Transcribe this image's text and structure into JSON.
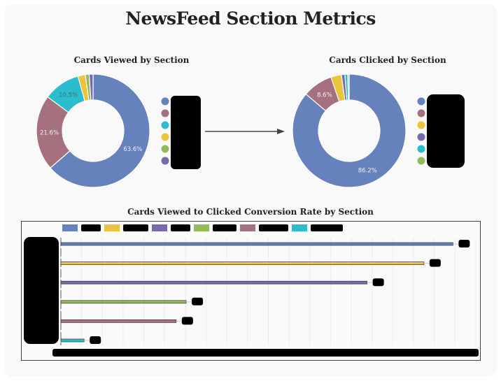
{
  "page": {
    "title": "NewsFeed Section Metrics"
  },
  "colors": {
    "blue": "#6582bd",
    "mauve": "#a5717f",
    "teal": "#2bbccd",
    "yellow": "#ecc43c",
    "green": "#93bb5b",
    "purple": "#7968ae",
    "arrow": "#444444"
  },
  "chart_data": [
    {
      "type": "pie",
      "title": "Cards Viewed by Section",
      "donut": true,
      "slices": [
        {
          "key": "blue",
          "value": 63.6,
          "label": "63.6%"
        },
        {
          "key": "mauve",
          "value": 21.6,
          "label": "21.6%"
        },
        {
          "key": "teal",
          "value": 10.5,
          "label": "10.5%"
        },
        {
          "key": "yellow",
          "value": 2.1,
          "label": ""
        },
        {
          "key": "green",
          "value": 1.1,
          "label": ""
        },
        {
          "key": "purple",
          "value": 1.1,
          "label": ""
        }
      ],
      "legend_order": [
        "blue",
        "mauve",
        "teal",
        "yellow",
        "green",
        "purple"
      ],
      "legend_labels_redacted": true,
      "legend": "right"
    },
    {
      "type": "pie",
      "title": "Cards Clicked by Section",
      "donut": true,
      "slices": [
        {
          "key": "blue",
          "value": 86.2,
          "label": "86.2%"
        },
        {
          "key": "mauve",
          "value": 8.6,
          "label": "8.6%"
        },
        {
          "key": "yellow",
          "value": 3.0,
          "label": ""
        },
        {
          "key": "purple",
          "value": 1.0,
          "label": ""
        },
        {
          "key": "teal",
          "value": 0.8,
          "label": ""
        },
        {
          "key": "green",
          "value": 0.4,
          "label": ""
        }
      ],
      "legend_order": [
        "blue",
        "mauve",
        "yellow",
        "purple",
        "teal",
        "green"
      ],
      "legend_labels_redacted": true,
      "legend": "right"
    },
    {
      "type": "bar",
      "orientation": "horizontal",
      "title": "Cards Viewed to Clicked Conversion Rate by Section",
      "legend": "top",
      "legend_order": [
        "blue",
        "yellow",
        "purple",
        "green",
        "mauve",
        "teal"
      ],
      "series": [
        {
          "key": "blue",
          "value": 0.945
        },
        {
          "key": "yellow",
          "value": 0.875
        },
        {
          "key": "purple",
          "value": 0.738
        },
        {
          "key": "green",
          "value": 0.302
        },
        {
          "key": "mauve",
          "value": 0.278
        },
        {
          "key": "teal",
          "value": 0.056
        }
      ],
      "xlim": [
        0,
        1
      ],
      "grid": true,
      "labels_redacted": true
    }
  ]
}
